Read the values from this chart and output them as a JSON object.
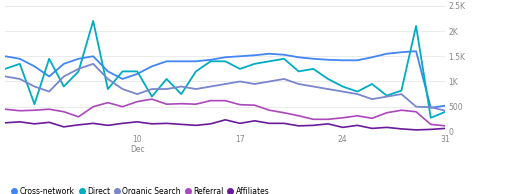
{
  "ylim": [
    0,
    2500
  ],
  "yticks": [
    0,
    500,
    1000,
    1500,
    2000,
    2500
  ],
  "ytick_labels": [
    "0",
    "500",
    "1K",
    "1.5K",
    "2K",
    "2.5K"
  ],
  "series": {
    "Cross-network": {
      "color": "#4285f4",
      "linewidth": 1.3,
      "values": [
        1500,
        1450,
        1300,
        1100,
        1350,
        1450,
        1500,
        1200,
        1050,
        1150,
        1300,
        1400,
        1400,
        1400,
        1430,
        1480,
        1500,
        1520,
        1550,
        1530,
        1480,
        1450,
        1430,
        1420,
        1420,
        1480,
        1550,
        1580,
        1600,
        480,
        520
      ]
    },
    "Direct": {
      "color": "#00acc1",
      "linewidth": 1.3,
      "values": [
        1250,
        1350,
        550,
        1450,
        900,
        1200,
        2200,
        850,
        1200,
        1200,
        700,
        1050,
        750,
        1200,
        1400,
        1400,
        1250,
        1350,
        1400,
        1450,
        1200,
        1250,
        1050,
        900,
        800,
        950,
        720,
        820,
        2100,
        280,
        400
      ]
    },
    "Organic Search": {
      "color": "#7986cb",
      "linewidth": 1.3,
      "values": [
        1100,
        1050,
        900,
        800,
        1100,
        1250,
        1350,
        1050,
        850,
        750,
        850,
        850,
        900,
        850,
        900,
        950,
        1000,
        950,
        1000,
        1050,
        950,
        900,
        850,
        800,
        750,
        650,
        700,
        750,
        500,
        490,
        420
      ]
    },
    "Referral": {
      "color": "#ab47bc",
      "linewidth": 1.2,
      "values": [
        450,
        420,
        430,
        450,
        400,
        300,
        500,
        580,
        500,
        600,
        650,
        550,
        560,
        550,
        620,
        620,
        540,
        530,
        430,
        380,
        320,
        250,
        250,
        280,
        320,
        270,
        380,
        430,
        400,
        150,
        120
      ]
    },
    "Affiliates": {
      "color": "#6a1b9a",
      "linewidth": 1.2,
      "values": [
        180,
        200,
        160,
        190,
        100,
        140,
        170,
        130,
        170,
        200,
        160,
        170,
        150,
        130,
        160,
        240,
        170,
        220,
        170,
        170,
        120,
        130,
        160,
        90,
        130,
        70,
        90,
        60,
        40,
        50,
        70
      ]
    }
  },
  "legend_order": [
    "Cross-network",
    "Direct",
    "Organic Search",
    "Referral",
    "Affiliates"
  ],
  "background_color": "#ffffff",
  "grid_color": "#e8e8e8"
}
